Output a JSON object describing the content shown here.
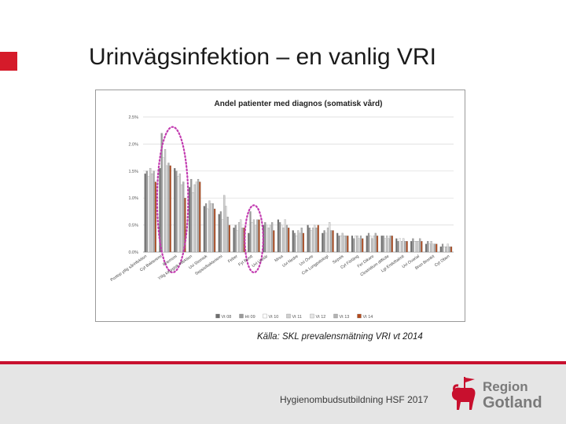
{
  "slide": {
    "title": "Urinvägsinfektion – en vanlig VRI",
    "source": "Källa: SKL prevalensmätning VRI vt 2014",
    "footer": "Hygienombudsutbildning HSF 2017",
    "logo": {
      "line1": "Region",
      "line2": "Gotland"
    },
    "accent_color": "#d51b2a"
  },
  "chart_data": {
    "type": "bar",
    "title": "Andel patienter med diagnos (somatisk vård)",
    "ylim": [
      0,
      2.5
    ],
    "yticks": [
      "0.0%",
      "0.5%",
      "1.0%",
      "1.5%",
      "2.0%",
      "2.5%"
    ],
    "grid": true,
    "legend_position": "bottom",
    "series": [
      {
        "name": "Vt 08",
        "color": "#6e6e6e"
      },
      {
        "name": "Ht 09",
        "color": "#9a9a9a"
      },
      {
        "name": "Vt 10",
        "color": "#ffffff"
      },
      {
        "name": "Vt 11",
        "color": "#cfcfcf"
      },
      {
        "name": "Vt 12",
        "color": "#e6e6e6"
      },
      {
        "name": "Vt 13",
        "color": "#b3b3b3"
      },
      {
        "name": "Vt 14",
        "color": "#b34a1c"
      }
    ],
    "categories": [
      "Postop ytlig sårinfektion",
      "",
      "Cyt Bakteremi",
      "",
      "Pnemoni",
      "",
      "Ytlig kirurgisk infektion",
      "",
      "Uvi Stomisk",
      "",
      "Sepsis/bakteriemi",
      "",
      "Feber",
      "",
      "Fyt Buntt",
      "",
      "Uvi Uretär",
      "",
      "Mrsa",
      "",
      "Uvi Nedre",
      "",
      "Uvi Övre",
      "",
      "Cvk Lungpatologi",
      "",
      "Sepsis",
      "",
      "Cyt Förläng",
      "",
      "Fer Dikare",
      "",
      "Clostridium difficile",
      "",
      "Lgi Endoftalmit",
      "",
      "Uvi Ovarial",
      "",
      "Bron Bronkit",
      "",
      "Cyt Oben"
    ],
    "values": [
      [
        1.45,
        1.5,
        1.4,
        1.55,
        1.45,
        1.5,
        1.3
      ],
      [
        1.55,
        2.2,
        1.75,
        1.9,
        1.6,
        1.65,
        1.6
      ],
      [
        1.55,
        1.5,
        1.4,
        1.45,
        1.25,
        1.3,
        1.0
      ],
      [
        1.2,
        1.35,
        1.1,
        1.25,
        1.3,
        1.35,
        1.3
      ],
      [
        0.85,
        0.9,
        0.8,
        0.95,
        0.9,
        0.9,
        0.8
      ],
      [
        0.7,
        0.75,
        0.6,
        1.05,
        0.85,
        0.65,
        0.5
      ],
      [
        0.45,
        0.5,
        0.4,
        0.55,
        0.6,
        0.45,
        0.45
      ],
      [
        0.35,
        0.75,
        0.55,
        0.6,
        0.5,
        0.6,
        0.6
      ],
      [
        0.5,
        0.55,
        0.5,
        0.45,
        0.5,
        0.55,
        0.4
      ],
      [
        0.6,
        0.55,
        0.5,
        0.45,
        0.6,
        0.5,
        0.45
      ],
      [
        0.4,
        0.35,
        0.3,
        0.4,
        0.35,
        0.45,
        0.35
      ],
      [
        0.5,
        0.45,
        0.4,
        0.45,
        0.5,
        0.45,
        0.5
      ],
      [
        0.35,
        0.4,
        0.35,
        0.45,
        0.55,
        0.4,
        0.4
      ],
      [
        0.35,
        0.3,
        0.3,
        0.35,
        0.3,
        0.3,
        0.3
      ],
      [
        0.3,
        0.25,
        0.3,
        0.3,
        0.25,
        0.3,
        0.25
      ],
      [
        0.3,
        0.35,
        0.3,
        0.25,
        0.3,
        0.35,
        0.3
      ],
      [
        0.3,
        0.3,
        0.25,
        0.3,
        0.25,
        0.3,
        0.3
      ],
      [
        0.25,
        0.2,
        0.25,
        0.2,
        0.25,
        0.2,
        0.2
      ],
      [
        0.2,
        0.25,
        0.2,
        0.2,
        0.2,
        0.25,
        0.2
      ],
      [
        0.15,
        0.2,
        0.15,
        0.2,
        0.15,
        0.15,
        0.15
      ],
      [
        0.1,
        0.15,
        0.1,
        0.1,
        0.15,
        0.1,
        0.1
      ]
    ],
    "highlight_groups": [
      1,
      2,
      7
    ]
  }
}
